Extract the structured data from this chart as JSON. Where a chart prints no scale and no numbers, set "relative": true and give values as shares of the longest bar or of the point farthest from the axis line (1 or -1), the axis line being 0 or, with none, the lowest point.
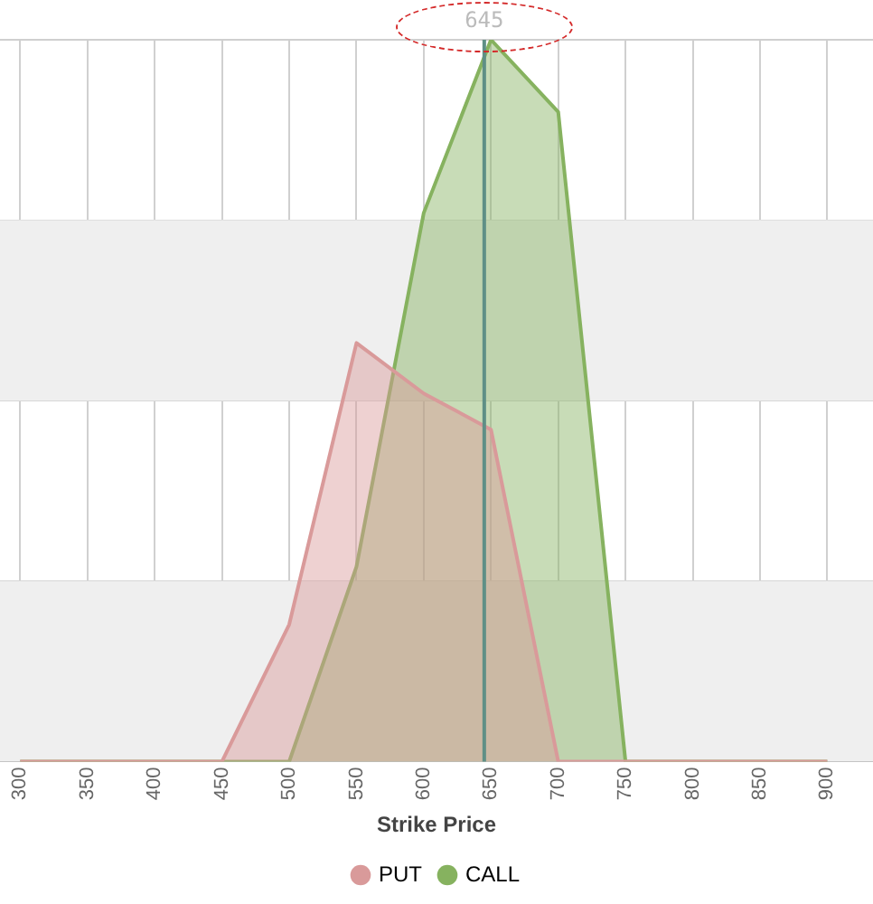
{
  "chart_data": {
    "type": "area",
    "xlabel": "Strike Price",
    "relative": true,
    "x": [
      300,
      350,
      400,
      450,
      500,
      550,
      600,
      650,
      700,
      750,
      800,
      850,
      900
    ],
    "xlim": [
      285,
      934
    ],
    "xticks": [
      300,
      350,
      400,
      450,
      500,
      550,
      600,
      650,
      700,
      750,
      800,
      850,
      900
    ],
    "series": [
      {
        "name": "PUT",
        "color": "#d99a9a",
        "values": [
          0,
          0,
          0,
          0,
          0.19,
          0.58,
          0.51,
          0.46,
          0,
          0,
          0,
          0,
          0
        ]
      },
      {
        "name": "CALL",
        "color": "#86b25f",
        "values": [
          0,
          0,
          0,
          0,
          0,
          0.27,
          0.76,
          1,
          0.9,
          0,
          0,
          0,
          0
        ]
      }
    ],
    "ref_lines": [
      {
        "axis": "x",
        "value": 645,
        "label": "645",
        "color": "#5f8f86"
      }
    ],
    "bands": [
      {
        "axis": "y",
        "from": 0,
        "to": 0.25,
        "color": "#efefef"
      },
      {
        "axis": "y",
        "from": 0.5,
        "to": 0.75,
        "color": "#efefef"
      }
    ],
    "grid": true,
    "legend": "bottom",
    "marker": "none"
  }
}
